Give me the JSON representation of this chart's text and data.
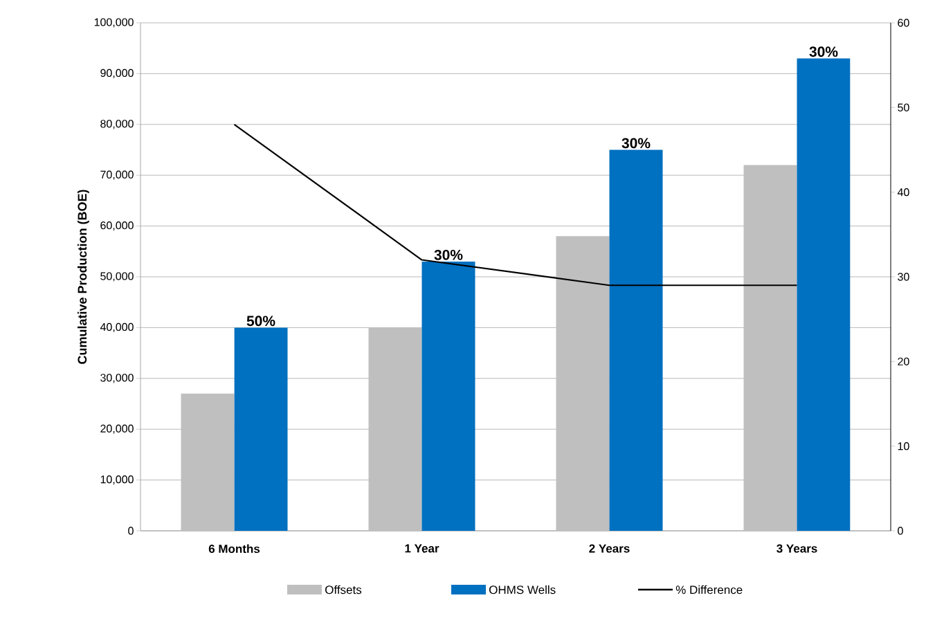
{
  "chart_data": {
    "type": "bar",
    "ylabel": "Cumulative Production (BOE)",
    "categories": [
      "6 Months",
      "1 Year",
      "2 Years",
      "3 Years"
    ],
    "series": [
      {
        "name": "Offsets",
        "color": "#bfbfbf",
        "values": [
          27000,
          40000,
          58000,
          72000
        ]
      },
      {
        "name": "OHMS Wells",
        "color": "#0070c0",
        "values": [
          40000,
          53000,
          75000,
          93000
        ]
      },
      {
        "name": "% Difference",
        "type": "line",
        "axis": "y2",
        "color": "#000000",
        "values": [
          48,
          32,
          29,
          29
        ]
      }
    ],
    "ylim": [
      0,
      100000
    ],
    "yticks": [
      {
        "value": 0,
        "label": "0"
      },
      {
        "value": 10000,
        "label": "10,000"
      },
      {
        "value": 20000,
        "label": "20,000"
      },
      {
        "value": 30000,
        "label": "30,000"
      },
      {
        "value": 40000,
        "label": "40,000"
      },
      {
        "value": 50000,
        "label": "50,000"
      },
      {
        "value": 60000,
        "label": "60,000"
      },
      {
        "value": 70000,
        "label": "70,000"
      },
      {
        "value": 80000,
        "label": "80,000"
      },
      {
        "value": 90000,
        "label": "90,000"
      },
      {
        "value": 100000,
        "label": "100,000"
      }
    ],
    "y2lim": [
      0,
      60
    ],
    "y2ticks": [
      0,
      10,
      20,
      30,
      40,
      50,
      60
    ],
    "annotations": [
      {
        "text": "50%",
        "x": "6 Months",
        "y": 40000
      },
      {
        "text": "30%",
        "x": "1 Year",
        "y": 53000
      },
      {
        "text": "30%",
        "x": "2 Years",
        "y": 75000
      },
      {
        "text": "30%",
        "x": "3 Years",
        "y": 93000
      }
    ],
    "grid": "y",
    "legend": "bottom"
  }
}
